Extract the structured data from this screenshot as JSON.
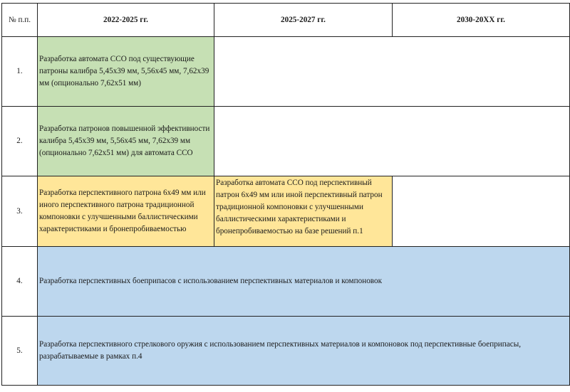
{
  "header": {
    "num": "№ п.п.",
    "periods": [
      "2022-2025 гг.",
      "2025-2027 гг.",
      "2030-20ХХ гг."
    ]
  },
  "rows": [
    {
      "num": "1.",
      "text": "Разработка автомата ССО под существующие патроны калибра 5,45х39 мм, 5,56х45 мм, 7,62х39 мм (опционально 7,62х51 мм)"
    },
    {
      "num": "2.",
      "text": "Разработка патронов повышенной эффективности калибра 5,45х39 мм, 5,56х45 мм, 7,62х39 мм (опционально 7,62х51 мм) для автомата ССО"
    },
    {
      "num": "3.",
      "text": "Разработка перспективного патрона 6х49 мм или иного перспективного патрона традиционной компоновки с улучшенными баллистическими характеристиками и бронепробиваемостью",
      "text2": "Разработка автомата ССО под перспективный патрон 6х49 мм или иной перспективный патрон традиционной компоновки с улучшенными баллистическими характеристиками и бронепробиваемостью на базе решений п.1"
    },
    {
      "num": "4.",
      "text": "Разработка перспективных боеприпасов с использованием перспективных материалов и компоновок"
    },
    {
      "num": "5.",
      "text": "Разработка перспективного стрелкового оружия с использованием перспективных материалов и компоновок под перспективные боеприпасы, разрабатываемые в рамках п.4"
    }
  ],
  "colors": {
    "green": "#c6e0b4",
    "yellow": "#ffe699",
    "blue": "#bdd7ee"
  }
}
